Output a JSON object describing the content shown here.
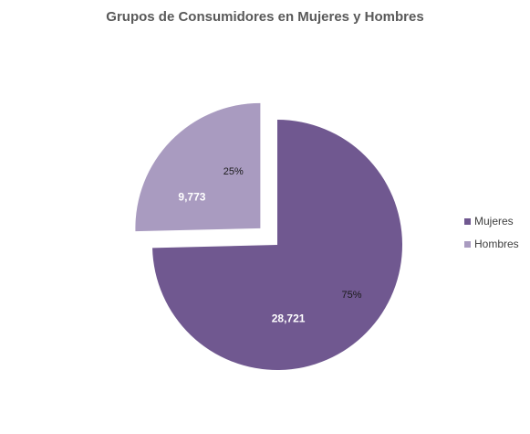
{
  "chart_data": {
    "type": "pie",
    "title": "Grupos de Consumidores en Mujeres y Hombres",
    "categories": [
      "Mujeres",
      "Hombres"
    ],
    "values": [
      28721,
      9773
    ],
    "value_labels": [
      "28,721",
      "9,773"
    ],
    "percent_labels": [
      "75%",
      "25%"
    ],
    "colors": [
      "#705890",
      "#A99BC0"
    ],
    "legend_position": "right",
    "exploded": "Hombres"
  }
}
